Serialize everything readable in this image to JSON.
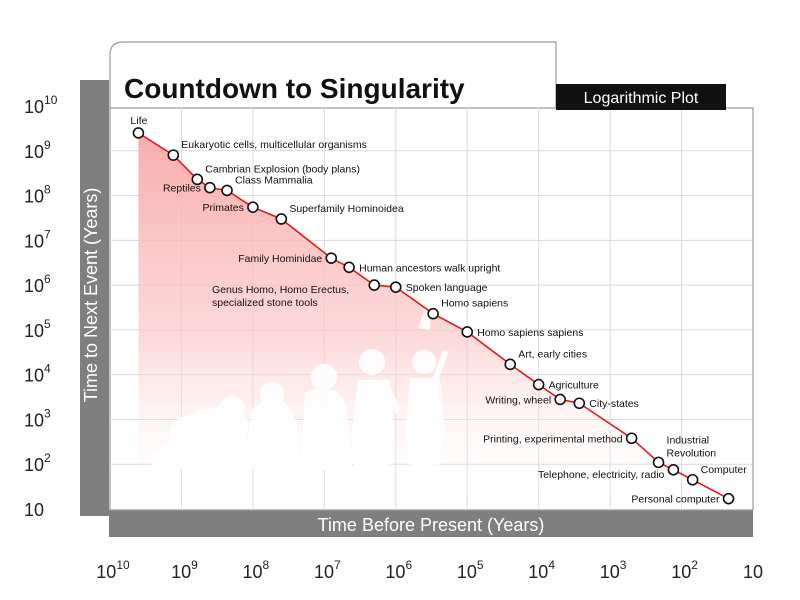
{
  "colors": {
    "line": "#e01b1b",
    "fill": "#f9a8a8",
    "axis_band": "#7f7f7f",
    "subtitle_bg": "#111111",
    "silhouette": "#ffffff"
  },
  "chart_data": {
    "type": "scatter",
    "title": "Countdown to Singularity",
    "subtitle": "Logarithmic Plot",
    "xlabel": "Time Before Present (Years)",
    "ylabel": "Time to Next Event (Years)",
    "x_scale": "log",
    "y_scale": "log",
    "x_direction": "decreasing",
    "xlim": [
      10000000000,
      10
    ],
    "ylim": [
      10,
      10000000000
    ],
    "grid": true,
    "x_ticks": [
      {
        "base": "10",
        "exp": "10"
      },
      {
        "base": "10",
        "exp": "9"
      },
      {
        "base": "10",
        "exp": "8"
      },
      {
        "base": "10",
        "exp": "7"
      },
      {
        "base": "10",
        "exp": "6"
      },
      {
        "base": "10",
        "exp": "5"
      },
      {
        "base": "10",
        "exp": "4"
      },
      {
        "base": "10",
        "exp": "3"
      },
      {
        "base": "10",
        "exp": "2"
      },
      {
        "base": "10",
        "exp": ""
      }
    ],
    "y_ticks": [
      {
        "base": "10",
        "exp": "10"
      },
      {
        "base": "10",
        "exp": "9"
      },
      {
        "base": "10",
        "exp": "8"
      },
      {
        "base": "10",
        "exp": "7"
      },
      {
        "base": "10",
        "exp": "6"
      },
      {
        "base": "10",
        "exp": "5"
      },
      {
        "base": "10",
        "exp": "4"
      },
      {
        "base": "10",
        "exp": "3"
      },
      {
        "base": "10",
        "exp": "2"
      },
      {
        "base": "10",
        "exp": ""
      }
    ],
    "points": [
      {
        "label": "Life",
        "x": 4000000000,
        "y": 2500000000,
        "label_pos": "above-left"
      },
      {
        "label": "Eukaryotic cells, multicellular organisms",
        "x": 1300000000,
        "y": 800000000,
        "label_pos": "above-right"
      },
      {
        "label": "Cambrian Explosion (body plans)",
        "x": 600000000,
        "y": 230000000,
        "label_pos": "above-right"
      },
      {
        "label": "Reptiles",
        "x": 400000000,
        "y": 150000000,
        "label_pos": "left"
      },
      {
        "label": "Class Mammalia",
        "x": 230000000,
        "y": 130000000,
        "label_pos": "above-right"
      },
      {
        "label": "Primates",
        "x": 100000000,
        "y": 55000000,
        "label_pos": "left"
      },
      {
        "label": "Superfamily Hominoidea",
        "x": 40000000,
        "y": 30000000,
        "label_pos": "above-right"
      },
      {
        "label": "Family Hominidae",
        "x": 8000000,
        "y": 4000000,
        "label_pos": "left"
      },
      {
        "label": "Human ancestors walk upright",
        "x": 4500000,
        "y": 2500000,
        "label_pos": "right"
      },
      {
        "label": "Genus Homo, Homo Erectus,\nspecialized stone tools",
        "x": 2000000,
        "y": 1000000,
        "label_pos": "below-left"
      },
      {
        "label": "Spoken language",
        "x": 1000000,
        "y": 900000,
        "label_pos": "right"
      },
      {
        "label": "Homo sapiens",
        "x": 300000,
        "y": 230000,
        "label_pos": "above-right"
      },
      {
        "label": "Homo sapiens sapiens",
        "x": 100000,
        "y": 90000,
        "label_pos": "right"
      },
      {
        "label": "Art, early cities",
        "x": 25000,
        "y": 17000,
        "label_pos": "above-right"
      },
      {
        "label": "Agriculture",
        "x": 10000,
        "y": 6000,
        "label_pos": "right"
      },
      {
        "label": "Writing, wheel",
        "x": 5000,
        "y": 2800,
        "label_pos": "left"
      },
      {
        "label": "City-states",
        "x": 2700,
        "y": 2300,
        "label_pos": "right"
      },
      {
        "label": "Printing, experimental method",
        "x": 500,
        "y": 380,
        "label_pos": "left"
      },
      {
        "label": "Industrial\nRevolution",
        "x": 210,
        "y": 110,
        "label_pos": "above-right"
      },
      {
        "label": "Telephone,  electricity, radio",
        "x": 130,
        "y": 75,
        "label_pos": "below-left"
      },
      {
        "label": "Computer",
        "x": 70,
        "y": 45,
        "label_pos": "above-right"
      },
      {
        "label": "Personal computer",
        "x": 22,
        "y": 17,
        "label_pos": "left"
      }
    ]
  }
}
